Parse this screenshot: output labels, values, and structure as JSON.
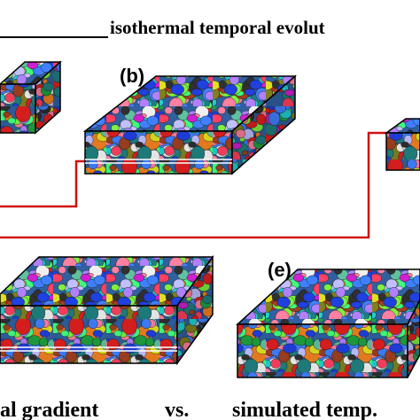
{
  "header": {
    "title": "isothermal temporal evolut"
  },
  "panels": [
    {
      "label": "(b)"
    },
    {
      "label": "(e)"
    }
  ],
  "footer": {
    "left": "al gradient",
    "middle": "vs.",
    "right": "simulated temp."
  }
}
